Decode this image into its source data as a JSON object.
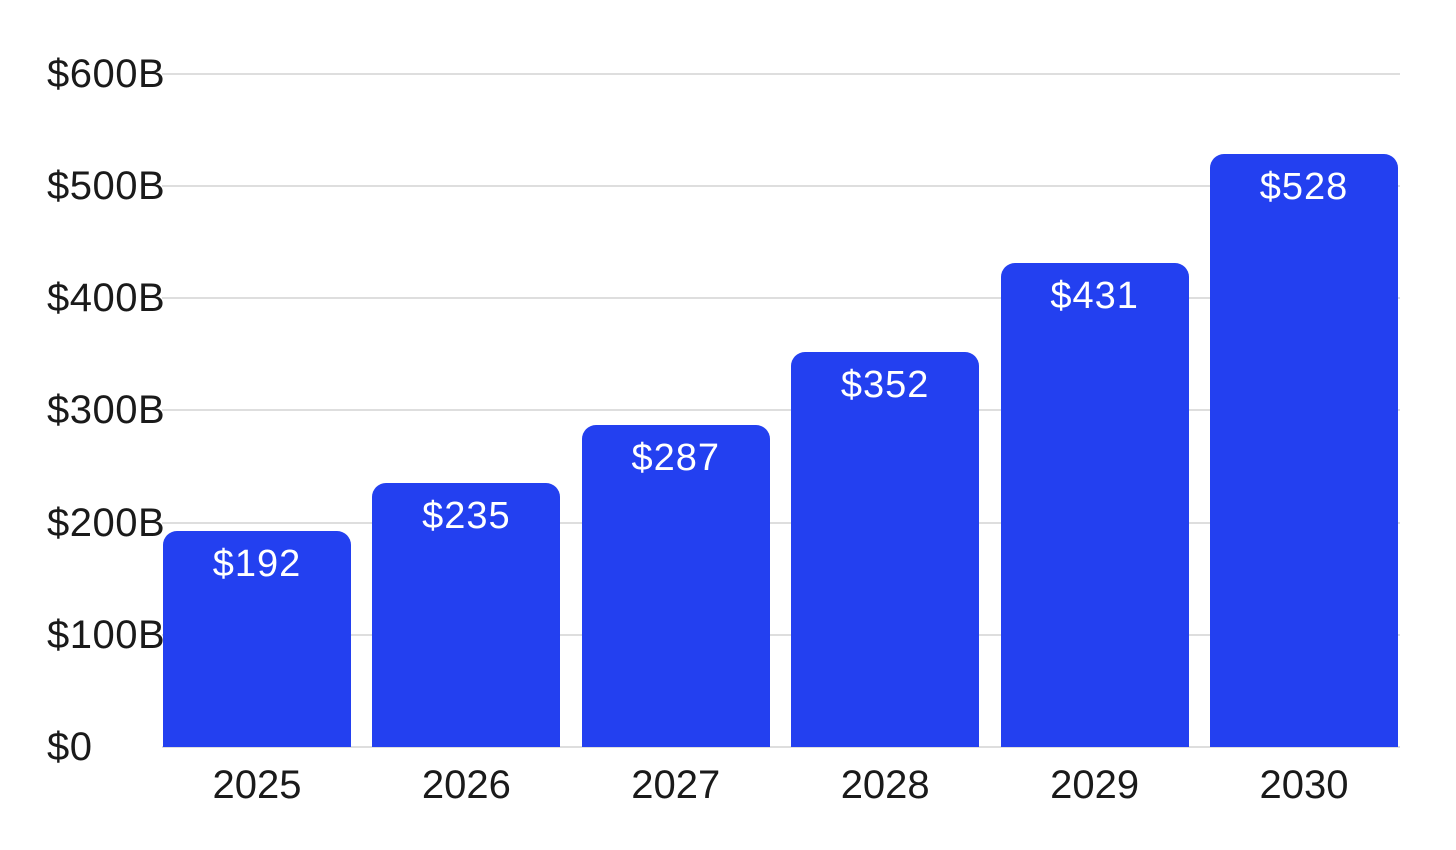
{
  "chart_data": {
    "type": "bar",
    "title": "",
    "xlabel": "",
    "ylabel": "",
    "grid": "horizontal",
    "legend": null,
    "categories": [
      "2025",
      "2026",
      "2027",
      "2028",
      "2029",
      "2030"
    ],
    "values": [
      192,
      235,
      287,
      352,
      431,
      528
    ],
    "bar_labels": [
      "$192",
      "$235",
      "$287",
      "$352",
      "$431",
      "$528"
    ],
    "y_axis": {
      "ylim": [
        0,
        600
      ],
      "tick_values": [
        0,
        100,
        200,
        300,
        400,
        500,
        600
      ],
      "tick_labels": [
        "$0",
        "$100B",
        "$200B",
        "$300B",
        "$400B",
        "$500B",
        "$600B"
      ]
    },
    "colors": {
      "bar": "#2340F0",
      "bar_label_text": "#FFFFFF",
      "axis_text": "#1A1A1A",
      "gridline": "#DEDEDE",
      "background": "#FFFFFF"
    }
  }
}
